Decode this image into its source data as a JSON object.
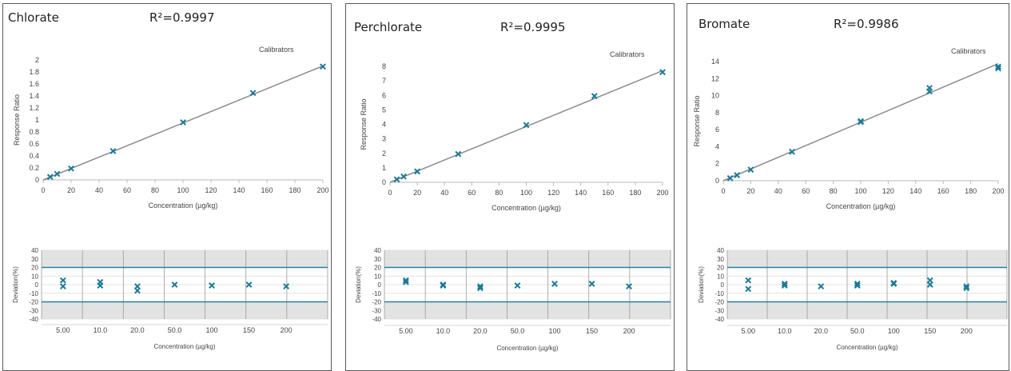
{
  "panels": [
    {
      "name": "Chlorate",
      "r2": "R²=0.9997",
      "calibrators_label": "Calibrators",
      "calibration_chart": {
        "type": "scatter",
        "xlabel": "Concentration (µg/kg)",
        "ylabel": "Response Ratio",
        "xlim": [
          0,
          200
        ],
        "ylim": [
          0,
          2
        ],
        "xticks": [
          0,
          20,
          40,
          60,
          80,
          100,
          120,
          140,
          160,
          180,
          200
        ],
        "yticks": [
          0,
          0.2,
          0.4,
          0.6,
          0.8,
          1,
          1.2,
          1.4,
          1.6,
          1.8,
          2
        ],
        "ytick_labels": [
          "0",
          "0.2",
          "0.4",
          "0.6",
          "0.8",
          "1",
          "1.2",
          "1.4",
          "1.6",
          "1.8",
          "2"
        ],
        "fit_line": [
          [
            0,
            0.0
          ],
          [
            200,
            1.9
          ]
        ],
        "points": [
          [
            5,
            0.05
          ],
          [
            10,
            0.1
          ],
          [
            20,
            0.19
          ],
          [
            50,
            0.48
          ],
          [
            100,
            0.96
          ],
          [
            150,
            1.45
          ],
          [
            200,
            1.89
          ]
        ]
      },
      "deviation_chart": {
        "type": "scatter",
        "xlabel": "Concentration (µg/kg)",
        "ylabel": "Deviation(%)",
        "ylim": [
          -40,
          40
        ],
        "yticks": [
          40,
          30,
          20,
          10,
          0,
          -10,
          -20,
          -30,
          -40
        ],
        "limit_lines": [
          20,
          -20
        ],
        "categories": [
          "5.00",
          "10.0",
          "20.0",
          "50.0",
          "100",
          "150",
          "200"
        ],
        "points": [
          [
            "5.00",
            5
          ],
          [
            "5.00",
            -2
          ],
          [
            "10.0",
            3
          ],
          [
            "10.0",
            -1
          ],
          [
            "20.0",
            -2
          ],
          [
            "20.0",
            -7
          ],
          [
            "50.0",
            0
          ],
          [
            "100",
            -1
          ],
          [
            "150",
            0
          ],
          [
            "200",
            -2
          ]
        ]
      }
    },
    {
      "name": "Perchlorate",
      "r2": "R²=0.9995",
      "calibrators_label": "Calibrators",
      "calibration_chart": {
        "type": "scatter",
        "xlabel": "Concentration (µg/kg)",
        "ylabel": "Response Ratio",
        "xlim": [
          0,
          200
        ],
        "ylim": [
          0,
          8
        ],
        "xticks": [
          0,
          20,
          40,
          60,
          80,
          100,
          120,
          140,
          160,
          180,
          200
        ],
        "yticks": [
          0,
          1,
          2,
          3,
          4,
          5,
          6,
          7,
          8
        ],
        "ytick_labels": [
          "0",
          "1",
          "2",
          "3",
          "4",
          "5",
          "6",
          "7",
          "8"
        ],
        "fit_line": [
          [
            0,
            0.0
          ],
          [
            200,
            7.7
          ]
        ],
        "points": [
          [
            5,
            0.2
          ],
          [
            10,
            0.4
          ],
          [
            20,
            0.75
          ],
          [
            50,
            1.95
          ],
          [
            100,
            3.95
          ],
          [
            150,
            5.95
          ],
          [
            200,
            7.6
          ]
        ]
      },
      "deviation_chart": {
        "type": "scatter",
        "xlabel": "Concentration (µg/kg)",
        "ylabel": "Deviation(%)",
        "ylim": [
          -40,
          40
        ],
        "yticks": [
          40,
          30,
          20,
          10,
          0,
          -10,
          -20,
          -30,
          -40
        ],
        "limit_lines": [
          20,
          -20
        ],
        "categories": [
          "5.00",
          "10.0",
          "20.0",
          "50.0",
          "100",
          "150",
          "200"
        ],
        "points": [
          [
            "5.00",
            5
          ],
          [
            "5.00",
            3
          ],
          [
            "10.0",
            0
          ],
          [
            "10.0",
            -1
          ],
          [
            "20.0",
            -2
          ],
          [
            "20.0",
            -4
          ],
          [
            "50.0",
            -1
          ],
          [
            "100",
            1
          ],
          [
            "150",
            1
          ],
          [
            "200",
            -2
          ]
        ]
      }
    },
    {
      "name": "Bromate",
      "r2": "R²=0.9986",
      "calibrators_label": "Calibrators",
      "calibration_chart": {
        "type": "scatter",
        "xlabel": "Concentration (µg/kg)",
        "ylabel": "Response Ratio",
        "xlim": [
          0,
          200
        ],
        "ylim": [
          0,
          14
        ],
        "xticks": [
          0,
          20,
          40,
          60,
          80,
          100,
          120,
          140,
          160,
          180,
          200
        ],
        "yticks": [
          0,
          2,
          4,
          6,
          8,
          10,
          12,
          14
        ],
        "ytick_labels": [
          "0",
          "2",
          "4",
          "6",
          "8",
          "10",
          "12",
          "14"
        ],
        "fit_line": [
          [
            0,
            0.0
          ],
          [
            200,
            13.75
          ]
        ],
        "points": [
          [
            5,
            0.3
          ],
          [
            10,
            0.65
          ],
          [
            20,
            1.3
          ],
          [
            50,
            3.4
          ],
          [
            100,
            6.9
          ],
          [
            100,
            7.0
          ],
          [
            150,
            10.5
          ],
          [
            150,
            10.9
          ],
          [
            200,
            13.2
          ],
          [
            200,
            13.4
          ]
        ]
      },
      "deviation_chart": {
        "type": "scatter",
        "xlabel": "Concentration (µg/kg)",
        "ylabel": "Deviation(%)",
        "ylim": [
          -40,
          40
        ],
        "yticks": [
          40,
          30,
          20,
          10,
          0,
          -10,
          -20,
          -30,
          -40
        ],
        "limit_lines": [
          20,
          -20
        ],
        "categories": [
          "5.00",
          "10.0",
          "20.0",
          "50.0",
          "100",
          "150",
          "200"
        ],
        "points": [
          [
            "5.00",
            5
          ],
          [
            "5.00",
            -5
          ],
          [
            "10.0",
            1
          ],
          [
            "10.0",
            -1
          ],
          [
            "20.0",
            -2
          ],
          [
            "50.0",
            1
          ],
          [
            "50.0",
            -1
          ],
          [
            "100",
            1
          ],
          [
            "100",
            2
          ],
          [
            "150",
            5
          ],
          [
            "150",
            0
          ],
          [
            "200",
            -2
          ],
          [
            "200",
            -4
          ]
        ]
      }
    }
  ],
  "colors": {
    "marker": "#1b7a96",
    "fit_line": "#8c8c8c",
    "limit_line": "#2b7f9c",
    "band": "#e3e3e3",
    "grid": "#dcdcdc"
  }
}
